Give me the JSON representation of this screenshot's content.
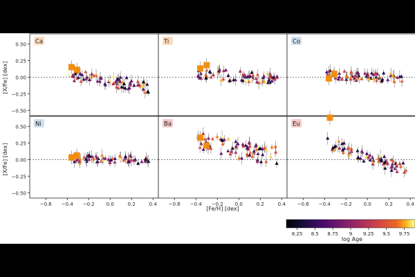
{
  "chart_data": {
    "type": "scatter",
    "layout": "2x3 grid",
    "ylabel": "[X/Fe] [dex]",
    "xlabel": "[Fe/H] [dex]",
    "xlim": [
      -0.75,
      0.45
    ],
    "ylim": [
      -0.58,
      0.65
    ],
    "x_ticks": [
      -0.6,
      -0.4,
      -0.2,
      0.0,
      0.2,
      0.4
    ],
    "x_tick_labels": [
      "−0.6",
      "−0.4",
      "−0.2",
      "0.0",
      "0.2",
      "0.4"
    ],
    "y_ticks": [
      -0.5,
      -0.25,
      0.0,
      0.25,
      0.5
    ],
    "y_tick_labels": [
      "−0.50",
      "−0.25",
      "0.00",
      "0.25",
      "0.50"
    ],
    "reference_line": {
      "y": 0,
      "style": "dotted"
    },
    "colorbar": {
      "label": "log Age",
      "min": 8.1,
      "max": 9.9,
      "ticks": [
        8.25,
        8.5,
        8.75,
        9,
        9.25,
        9.5,
        9.75
      ],
      "tick_labels": [
        "8.25",
        "8.5",
        "8.75",
        "9",
        "9.25",
        "9.5",
        "9.75"
      ],
      "colormap": "inferno"
    },
    "marker_color_highlight": "#f28e0e",
    "panels": [
      {
        "label": "Ca",
        "label_bg": "#fbdcc0",
        "highlight": [
          [
            -0.36,
            0.15
          ],
          [
            -0.31,
            0.11
          ]
        ],
        "trend": {
          "start": 0.05,
          "end": -0.15,
          "spread": 0.09
        }
      },
      {
        "label": "Ti",
        "label_bg": "#fbdcc0",
        "highlight": [
          [
            -0.36,
            0.13
          ],
          [
            -0.3,
            0.18
          ]
        ],
        "trend": {
          "start": 0.06,
          "end": -0.03,
          "spread": 0.08
        }
      },
      {
        "label": "Co",
        "label_bg": "#cfe0ee",
        "highlight": [
          [
            -0.36,
            -0.02
          ],
          [
            -0.31,
            0.05
          ]
        ],
        "trend": {
          "start": 0.04,
          "end": -0.01,
          "spread": 0.07
        }
      },
      {
        "label": "Ni",
        "label_bg": "#cfe0ee",
        "highlight": [
          [
            -0.36,
            0.03
          ],
          [
            -0.31,
            0.06
          ]
        ],
        "trend": {
          "start": 0.01,
          "end": 0.0,
          "spread": 0.06
        }
      },
      {
        "label": "Ba",
        "label_bg": "#f6c9c9",
        "highlight": [
          [
            -0.36,
            0.33
          ],
          [
            -0.3,
            0.21
          ]
        ],
        "trend": {
          "start": 0.28,
          "end": 0.05,
          "spread": 0.14
        }
      },
      {
        "label": "Eu",
        "label_bg": "#f6c9c9",
        "highlight": [
          [
            -0.35,
            0.63
          ]
        ],
        "trend": {
          "start": 0.25,
          "end": -0.15,
          "spread": 0.09
        }
      }
    ]
  }
}
